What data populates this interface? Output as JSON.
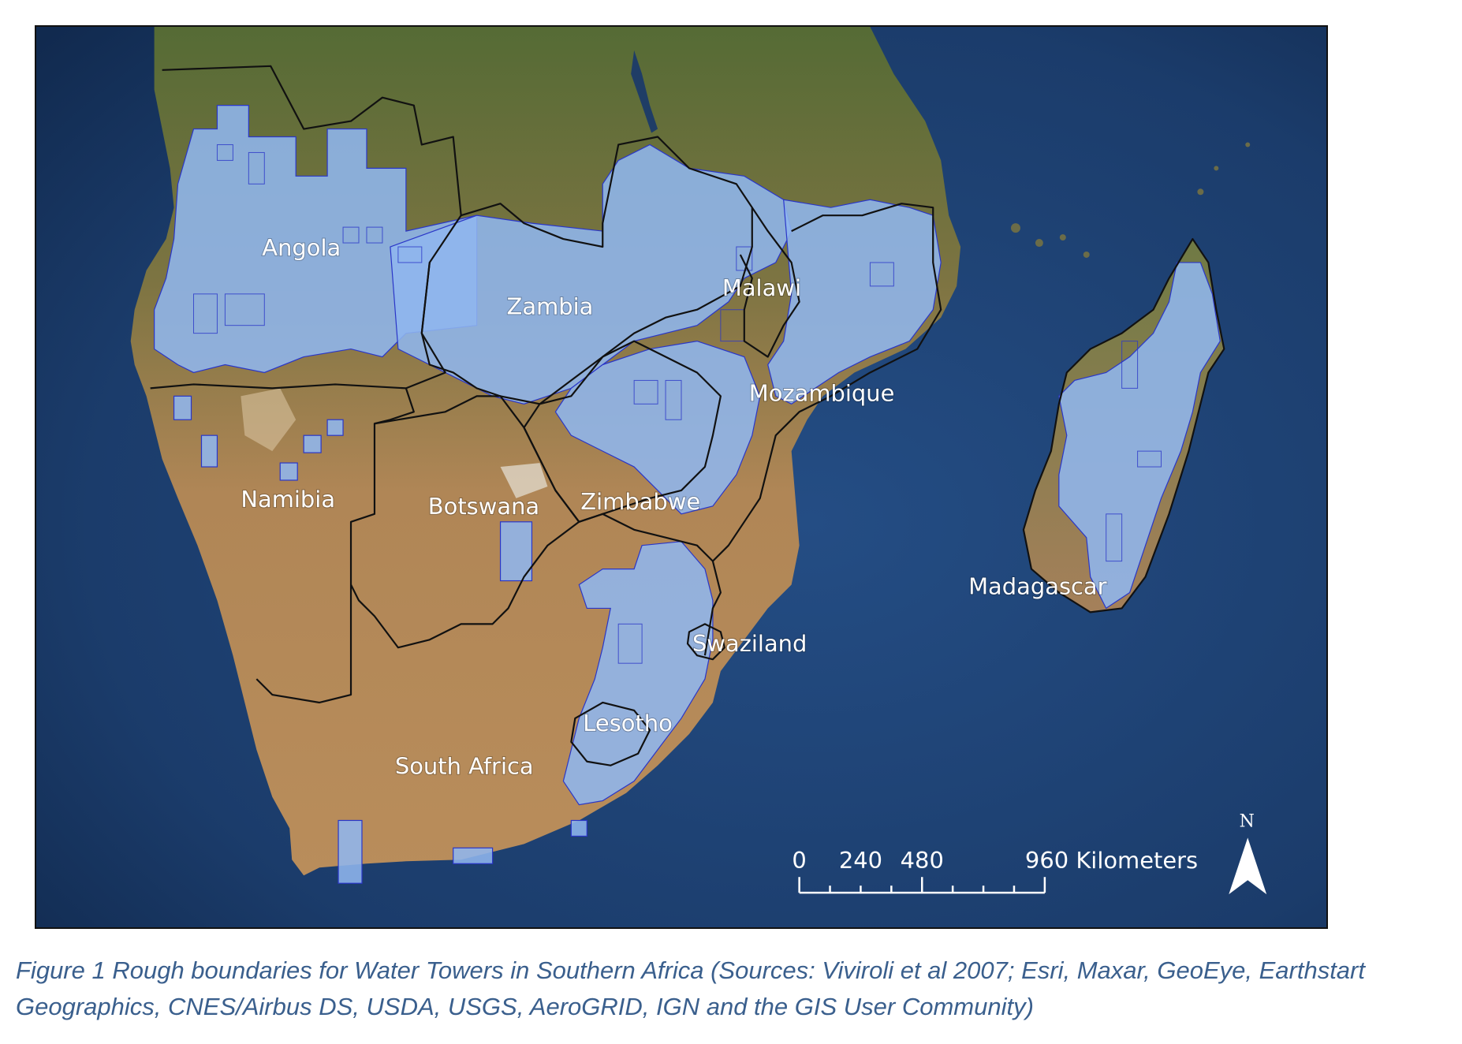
{
  "map": {
    "labels": [
      {
        "key": "angola",
        "text": "Angola"
      },
      {
        "key": "zambia",
        "text": "Zambia"
      },
      {
        "key": "malawi",
        "text": "Malawi"
      },
      {
        "key": "mozambique",
        "text": "Mozambique"
      },
      {
        "key": "namibia",
        "text": "Namibia"
      },
      {
        "key": "botswana",
        "text": "Botswana"
      },
      {
        "key": "zimbabwe",
        "text": "Zimbabwe"
      },
      {
        "key": "madagascar",
        "text": "Madagascar"
      },
      {
        "key": "swaziland",
        "text": "Swaziland"
      },
      {
        "key": "lesotho",
        "text": "Lesotho"
      },
      {
        "key": "south_africa",
        "text": "South Africa"
      }
    ],
    "scale_bar": {
      "tick_0": "0",
      "tick_240": "240",
      "tick_480": "480",
      "tick_960": "960 Kilometers"
    },
    "north_arrow": {
      "label": "N",
      "icon": "north-arrow-icon"
    },
    "colors": {
      "ocean": "#1c3f6e",
      "land": "#b98d5b",
      "water_tower_fill": "#8fb6ee",
      "water_tower_stroke": "#2a36c8",
      "border": "#111111"
    }
  },
  "caption": {
    "line1": "Figure 1 Rough boundaries for Water Towers in Southern Africa (Sources: Viviroli et al 2007; Esri, Maxar, GeoEye, Earthstart",
    "line2": "Geographics, CNES/Airbus DS, USDA, USGS, AeroGRID, IGN and the GIS User Community)"
  }
}
